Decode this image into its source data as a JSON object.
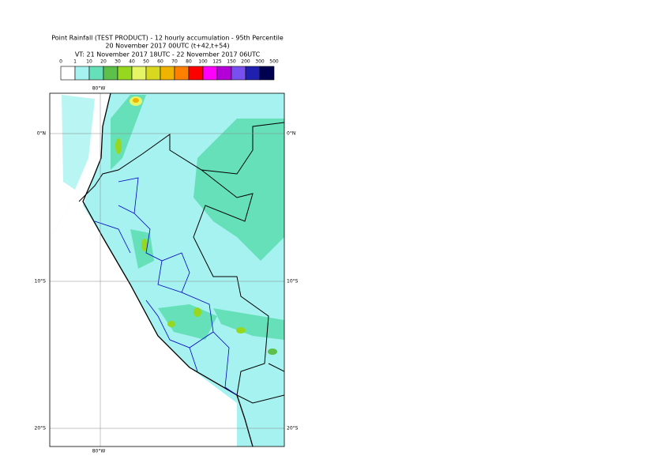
{
  "header": {
    "title": "Point Rainfall (TEST PRODUCT) - 12 hourly accumulation - 95th Percentile",
    "subtitle": "20 November 2017 00UTC (t+42,t+54)",
    "valid_time": "VT: 21 November 2017 18UTC - 22 November 2017 06UTC"
  },
  "legend": {
    "thresholds": [
      0,
      1,
      10,
      20,
      30,
      40,
      50,
      60,
      70,
      80,
      100,
      125,
      150,
      200,
      300,
      500
    ],
    "colors": [
      "#ffffff",
      "#a6f2f0",
      "#66e0b8",
      "#5cc04a",
      "#96d820",
      "#e6f566",
      "#d8d820",
      "#f0b400",
      "#ff8000",
      "#ff0000",
      "#ff00ff",
      "#b400d8",
      "#7850f0",
      "#2020b0",
      "#000050"
    ]
  },
  "map": {
    "lon_label": "80°W",
    "lat_labels": [
      "0°N",
      "10°S",
      "20°S"
    ]
  }
}
